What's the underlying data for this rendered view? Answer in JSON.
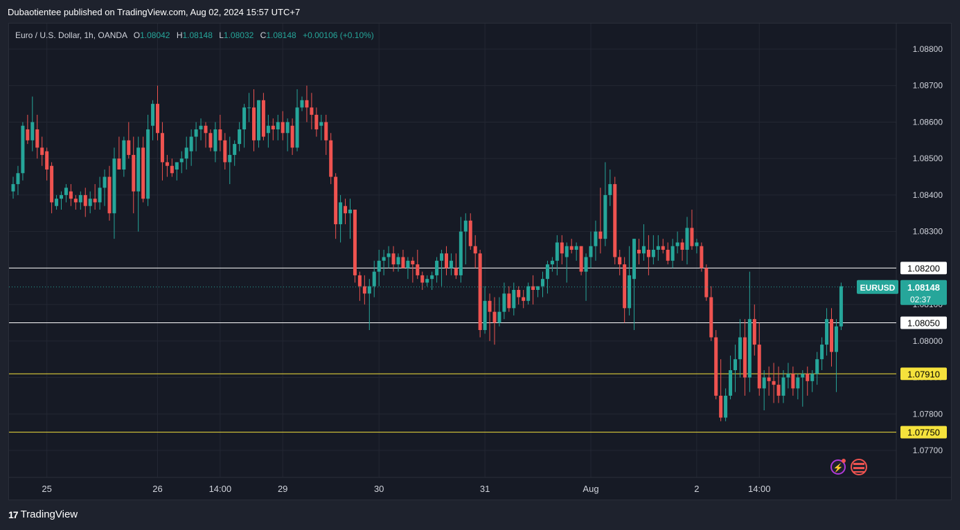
{
  "header": {
    "publisher_line": "Dubaotientee published on TradingView.com, Aug 02, 2024 15:57 UTC+7"
  },
  "legend": {
    "symbol": "Euro / U.S. Dollar, 1h, OANDA",
    "o_label": "O",
    "o": "1.08042",
    "h_label": "H",
    "h": "1.08148",
    "l_label": "L",
    "l": "1.08032",
    "c_label": "C",
    "c": "1.08148",
    "change": "+0.00106 (+0.10%)"
  },
  "footer": {
    "logo": "17",
    "brand": "TradingView"
  },
  "colors": {
    "up": "#26a69a",
    "down": "#ef5350",
    "hline_white": "#ffffff",
    "hline_yellow": "#f5e23c",
    "grid": "#232733"
  },
  "chart_data": {
    "type": "candlestick",
    "symbol": "EURUSD",
    "timeframe": "1h",
    "ylim": [
      1.0766,
      1.0893
    ],
    "y_ticks": [
      "1.08800",
      "1.08700",
      "1.08600",
      "1.08500",
      "1.08400",
      "1.08300",
      "1.08200",
      "1.08100",
      "1.08000",
      "1.07900",
      "1.07800",
      "1.07700"
    ],
    "x_ticks": [
      "25",
      "26",
      "14:00",
      "29",
      "30",
      "31",
      "Aug",
      "2",
      "14:00"
    ],
    "x_tick_bars": [
      7,
      30,
      43,
      56,
      76,
      98,
      120,
      142,
      155
    ],
    "horizontal_levels": [
      {
        "value": "1.08200",
        "color": "white"
      },
      {
        "value": "1.08050",
        "color": "white"
      },
      {
        "value": "1.07910",
        "color": "yellow"
      },
      {
        "value": "1.07750",
        "color": "yellow"
      }
    ],
    "last_price": {
      "label": "EURUSD",
      "value": "1.08148",
      "countdown": "02:37"
    },
    "candles": [
      [
        1.0841,
        1.0845,
        1.0839,
        1.0843
      ],
      [
        1.0843,
        1.0848,
        1.084,
        1.0846
      ],
      [
        1.0846,
        1.086,
        1.0844,
        1.0859
      ],
      [
        1.0858,
        1.0862,
        1.0854,
        1.0855
      ],
      [
        1.0855,
        1.0867,
        1.0852,
        1.086
      ],
      [
        1.0858,
        1.0862,
        1.085,
        1.0853
      ],
      [
        1.0853,
        1.0856,
        1.0848,
        1.0851
      ],
      [
        1.0852,
        1.0853,
        1.0844,
        1.0847
      ],
      [
        1.0848,
        1.0849,
        1.0835,
        1.0838
      ],
      [
        1.0837,
        1.084,
        1.0836,
        1.0839
      ],
      [
        1.0839,
        1.0841,
        1.0836,
        1.084
      ],
      [
        1.084,
        1.0843,
        1.0838,
        1.0842
      ],
      [
        1.0841,
        1.0843,
        1.0837,
        1.0839
      ],
      [
        1.0839,
        1.084,
        1.0836,
        1.0838
      ],
      [
        1.0838,
        1.0841,
        1.0836,
        1.084
      ],
      [
        1.084,
        1.0842,
        1.0834,
        1.0837
      ],
      [
        1.0837,
        1.0841,
        1.0835,
        1.0839
      ],
      [
        1.0839,
        1.0843,
        1.0836,
        1.0838
      ],
      [
        1.0838,
        1.0845,
        1.0836,
        1.0842
      ],
      [
        1.0842,
        1.0847,
        1.0837,
        1.0845
      ],
      [
        1.0845,
        1.0848,
        1.0833,
        1.0835
      ],
      [
        1.0835,
        1.0853,
        1.0828,
        1.085
      ],
      [
        1.085,
        1.0856,
        1.0847,
        1.0847
      ],
      [
        1.0847,
        1.0856,
        1.0845,
        1.0855
      ],
      [
        1.0855,
        1.086,
        1.085,
        1.0851
      ],
      [
        1.0851,
        1.0856,
        1.0835,
        1.0841
      ],
      [
        1.0841,
        1.0856,
        1.083,
        1.0853
      ],
      [
        1.0853,
        1.0856,
        1.0838,
        1.0839
      ],
      [
        1.0839,
        1.0862,
        1.0837,
        1.0858
      ],
      [
        1.0859,
        1.0866,
        1.0855,
        1.0865
      ],
      [
        1.0865,
        1.087,
        1.0855,
        1.0857
      ],
      [
        1.0857,
        1.086,
        1.0844,
        1.0849
      ],
      [
        1.0849,
        1.0851,
        1.0845,
        1.0848
      ],
      [
        1.0848,
        1.085,
        1.0845,
        1.0846
      ],
      [
        1.0847,
        1.0849,
        1.0844,
        1.0849
      ],
      [
        1.0849,
        1.0852,
        1.0846,
        1.085
      ],
      [
        1.085,
        1.0856,
        1.0847,
        1.0853
      ],
      [
        1.0852,
        1.0858,
        1.0848,
        1.0856
      ],
      [
        1.0856,
        1.086,
        1.0852,
        1.0858
      ],
      [
        1.0858,
        1.0861,
        1.0855,
        1.0859
      ],
      [
        1.0859,
        1.086,
        1.0853,
        1.0857
      ],
      [
        1.0857,
        1.0858,
        1.0852,
        1.0853
      ],
      [
        1.0852,
        1.086,
        1.0849,
        1.0858
      ],
      [
        1.0858,
        1.0862,
        1.0852,
        1.0855
      ],
      [
        1.0855,
        1.0857,
        1.0847,
        1.0849
      ],
      [
        1.0849,
        1.0856,
        1.0843,
        1.0851
      ],
      [
        1.0851,
        1.0855,
        1.0848,
        1.0854
      ],
      [
        1.0854,
        1.086,
        1.0852,
        1.0858
      ],
      [
        1.0858,
        1.0865,
        1.0853,
        1.0864
      ],
      [
        1.0864,
        1.0868,
        1.086,
        1.0864
      ],
      [
        1.0864,
        1.0869,
        1.0852,
        1.0855
      ],
      [
        1.0855,
        1.0866,
        1.0853,
        1.0866
      ],
      [
        1.0866,
        1.0868,
        1.0855,
        1.0856
      ],
      [
        1.0857,
        1.0862,
        1.0853,
        1.0859
      ],
      [
        1.0859,
        1.0861,
        1.0855,
        1.0858
      ],
      [
        1.0858,
        1.0862,
        1.0855,
        1.086
      ],
      [
        1.086,
        1.0863,
        1.0855,
        1.0857
      ],
      [
        1.0857,
        1.0861,
        1.0852,
        1.086
      ],
      [
        1.0859,
        1.0861,
        1.0851,
        1.0853
      ],
      [
        1.0853,
        1.0869,
        1.0852,
        1.0864
      ],
      [
        1.0864,
        1.0867,
        1.0863,
        1.0866
      ],
      [
        1.0866,
        1.087,
        1.086,
        1.0864
      ],
      [
        1.0864,
        1.0868,
        1.0858,
        1.0862
      ],
      [
        1.0862,
        1.0864,
        1.0856,
        1.0858
      ],
      [
        1.0859,
        1.0862,
        1.0855,
        1.086
      ],
      [
        1.086,
        1.0862,
        1.0851,
        1.0855
      ],
      [
        1.0855,
        1.0857,
        1.0843,
        1.0845
      ],
      [
        1.0845,
        1.0846,
        1.0828,
        1.0832
      ],
      [
        1.0832,
        1.084,
        1.0827,
        1.0838
      ],
      [
        1.0837,
        1.0839,
        1.0832,
        1.0835
      ],
      [
        1.0835,
        1.0839,
        1.0828,
        1.0836
      ],
      [
        1.0836,
        1.0836,
        1.0816,
        1.0818
      ],
      [
        1.0818,
        1.0819,
        1.0811,
        1.0815
      ],
      [
        1.0815,
        1.0818,
        1.081,
        1.0813
      ],
      [
        1.0813,
        1.0817,
        1.0803,
        1.0815
      ],
      [
        1.0815,
        1.0822,
        1.0812,
        1.0819
      ],
      [
        1.0819,
        1.0825,
        1.0815,
        1.0822
      ],
      [
        1.0822,
        1.0825,
        1.0818,
        1.0823
      ],
      [
        1.0823,
        1.0826,
        1.082,
        1.0824
      ],
      [
        1.0824,
        1.0826,
        1.0819,
        1.0821
      ],
      [
        1.0821,
        1.0824,
        1.0819,
        1.0823
      ],
      [
        1.0823,
        1.0825,
        1.082,
        1.082
      ],
      [
        1.082,
        1.0823,
        1.0817,
        1.0822
      ],
      [
        1.0822,
        1.0823,
        1.0816,
        1.0821
      ],
      [
        1.0821,
        1.0825,
        1.0817,
        1.0818
      ],
      [
        1.0818,
        1.0819,
        1.0814,
        1.0816
      ],
      [
        1.0816,
        1.0818,
        1.0815,
        1.0817
      ],
      [
        1.0817,
        1.0819,
        1.0814,
        1.0818
      ],
      [
        1.0818,
        1.0823,
        1.0816,
        1.0822
      ],
      [
        1.0822,
        1.0825,
        1.0815,
        1.0824
      ],
      [
        1.0824,
        1.0826,
        1.0818,
        1.082
      ],
      [
        1.082,
        1.0824,
        1.0818,
        1.0822
      ],
      [
        1.082,
        1.0824,
        1.0817,
        1.0818
      ],
      [
        1.0818,
        1.0834,
        1.0816,
        1.083
      ],
      [
        1.083,
        1.0835,
        1.0821,
        1.0833
      ],
      [
        1.0833,
        1.0835,
        1.0825,
        1.0826
      ],
      [
        1.0826,
        1.0829,
        1.082,
        1.0824
      ],
      [
        1.0824,
        1.0825,
        1.0801,
        1.0803
      ],
      [
        1.0803,
        1.0815,
        1.0802,
        1.0811
      ],
      [
        1.0811,
        1.0813,
        1.08,
        1.0808
      ],
      [
        1.0808,
        1.0812,
        1.0799,
        1.0805
      ],
      [
        1.0805,
        1.0812,
        1.0804,
        1.0808
      ],
      [
        1.0808,
        1.0816,
        1.0806,
        1.0813
      ],
      [
        1.0813,
        1.0815,
        1.0808,
        1.0809
      ],
      [
        1.0809,
        1.0816,
        1.0807,
        1.0814
      ],
      [
        1.0814,
        1.0815,
        1.081,
        1.0812
      ],
      [
        1.0812,
        1.0814,
        1.0809,
        1.0811
      ],
      [
        1.0811,
        1.0816,
        1.081,
        1.0815
      ],
      [
        1.0815,
        1.0818,
        1.081,
        1.0814
      ],
      [
        1.0814,
        1.0815,
        1.0812,
        1.0815
      ],
      [
        1.0815,
        1.0819,
        1.0812,
        1.0817
      ],
      [
        1.0817,
        1.0822,
        1.0813,
        1.0821
      ],
      [
        1.0821,
        1.0823,
        1.0819,
        1.0822
      ],
      [
        1.0822,
        1.0829,
        1.0818,
        1.0827
      ],
      [
        1.0827,
        1.0829,
        1.0821,
        1.0824
      ],
      [
        1.0823,
        1.0827,
        1.0816,
        1.0826
      ],
      [
        1.0826,
        1.0828,
        1.0824,
        1.0825
      ],
      [
        1.0825,
        1.0827,
        1.0822,
        1.0826
      ],
      [
        1.0826,
        1.0826,
        1.0818,
        1.0819
      ],
      [
        1.0819,
        1.0824,
        1.0811,
        1.0823
      ],
      [
        1.0823,
        1.083,
        1.082,
        1.0826
      ],
      [
        1.0826,
        1.0833,
        1.0822,
        1.083
      ],
      [
        1.083,
        1.0842,
        1.0824,
        1.0828
      ],
      [
        1.0828,
        1.0849,
        1.0826,
        1.084
      ],
      [
        1.084,
        1.0847,
        1.0837,
        1.0843
      ],
      [
        1.0843,
        1.0845,
        1.0821,
        1.0823
      ],
      [
        1.0823,
        1.0825,
        1.0818,
        1.0821
      ],
      [
        1.0821,
        1.0823,
        1.0805,
        1.0809
      ],
      [
        1.0809,
        1.0826,
        1.0807,
        1.0818
      ],
      [
        1.0817,
        1.0828,
        1.0803,
        1.0828
      ],
      [
        1.0825,
        1.0828,
        1.0821,
        1.0824
      ],
      [
        1.0824,
        1.0832,
        1.0822,
        1.0826
      ],
      [
        1.0825,
        1.0829,
        1.0818,
        1.0823
      ],
      [
        1.0823,
        1.0829,
        1.0821,
        1.0825
      ],
      [
        1.0825,
        1.0829,
        1.0822,
        1.0826
      ],
      [
        1.0826,
        1.0828,
        1.0824,
        1.0825
      ],
      [
        1.0825,
        1.0827,
        1.0821,
        1.0822
      ],
      [
        1.0822,
        1.0828,
        1.082,
        1.0826
      ],
      [
        1.0826,
        1.083,
        1.0824,
        1.0827
      ],
      [
        1.0827,
        1.0828,
        1.0822,
        1.0825
      ],
      [
        1.0825,
        1.0834,
        1.0821,
        1.0831
      ],
      [
        1.0831,
        1.0836,
        1.0825,
        1.0826
      ],
      [
        1.0826,
        1.0828,
        1.0824,
        1.0827
      ],
      [
        1.0826,
        1.0827,
        1.0819,
        1.082
      ],
      [
        1.082,
        1.0821,
        1.0811,
        1.0812
      ],
      [
        1.0812,
        1.0815,
        1.08,
        1.0801
      ],
      [
        1.0801,
        1.0803,
        1.0784,
        1.0785
      ],
      [
        1.0785,
        1.0795,
        1.0778,
        1.0779
      ],
      [
        1.0779,
        1.0787,
        1.0778,
        1.0785
      ],
      [
        1.0785,
        1.0796,
        1.0784,
        1.0792
      ],
      [
        1.0792,
        1.0799,
        1.0786,
        1.0795
      ],
      [
        1.0795,
        1.0806,
        1.079,
        1.0801
      ],
      [
        1.0801,
        1.0806,
        1.0785,
        1.079
      ],
      [
        1.079,
        1.0819,
        1.0786,
        1.0806
      ],
      [
        1.0806,
        1.081,
        1.0796,
        1.0799
      ],
      [
        1.0799,
        1.0805,
        1.0785,
        1.0787
      ],
      [
        1.0787,
        1.0792,
        1.0781,
        1.079
      ],
      [
        1.079,
        1.0793,
        1.0785,
        1.0789
      ],
      [
        1.0789,
        1.0794,
        1.0783,
        1.0788
      ],
      [
        1.0788,
        1.0793,
        1.0783,
        1.0785
      ],
      [
        1.0785,
        1.0792,
        1.0783,
        1.079
      ],
      [
        1.079,
        1.0794,
        1.0787,
        1.0791
      ],
      [
        1.0791,
        1.0793,
        1.0785,
        1.0787
      ],
      [
        1.0787,
        1.0791,
        1.0784,
        1.079
      ],
      [
        1.079,
        1.0792,
        1.0782,
        1.0791
      ],
      [
        1.0791,
        1.0793,
        1.0785,
        1.0789
      ],
      [
        1.0789,
        1.0792,
        1.0786,
        1.0791
      ],
      [
        1.0791,
        1.0797,
        1.0788,
        1.0795
      ],
      [
        1.0795,
        1.0801,
        1.0792,
        1.0799
      ],
      [
        1.0799,
        1.0809,
        1.0796,
        1.0806
      ],
      [
        1.0806,
        1.0809,
        1.0793,
        1.0797
      ],
      [
        1.0797,
        1.0806,
        1.0786,
        1.0804
      ],
      [
        1.0804,
        1.0816,
        1.0803,
        1.0815
      ]
    ]
  },
  "hint": "candles are [open, high, low, close]"
}
